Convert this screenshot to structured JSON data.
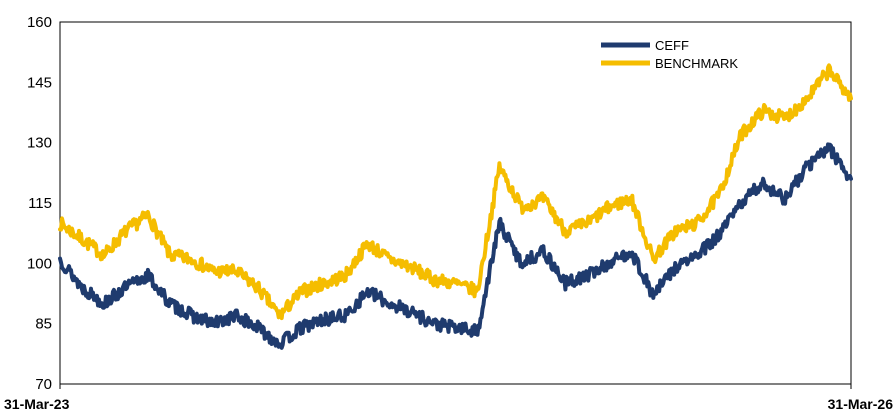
{
  "chart_data": {
    "type": "line",
    "title": "",
    "xlabel": "",
    "ylabel": "",
    "x_start_label": "31-Mar-23",
    "x_end_label": "31-Mar-26",
    "ylim": [
      70,
      160
    ],
    "yticks": [
      70,
      85,
      100,
      115,
      130,
      145,
      160
    ],
    "ytick_labels": [
      "70",
      "85",
      "100",
      "115",
      "130",
      "145",
      "160"
    ],
    "grid": false,
    "legend_position": "top-right",
    "x_period_labels": [
      "31-Mar-23",
      "",
      "",
      "",
      "",
      "",
      "",
      "",
      "",
      "",
      "",
      "",
      "",
      "",
      "",
      "",
      "",
      "",
      "",
      "",
      "",
      "",
      "",
      "",
      "",
      "",
      "",
      "",
      "",
      "",
      "",
      "",
      "",
      "",
      "",
      "",
      "31-Mar-26"
    ],
    "series": [
      {
        "name": "CEFF",
        "color": "#1f3b6e",
        "values": [
          101,
          94,
          90,
          94,
          97,
          90,
          87,
          85,
          87,
          84,
          80,
          84,
          86,
          87,
          93,
          90,
          88,
          85,
          84,
          83,
          110,
          100,
          103,
          95,
          97,
          100,
          103,
          92,
          99,
          102,
          107,
          115,
          120,
          116,
          124,
          129,
          121
        ]
      },
      {
        "name": "BENCHMARK",
        "color": "#f5bd00",
        "values": [
          110,
          106,
          102,
          108,
          112,
          102,
          101,
          98,
          98,
          94,
          87,
          93,
          95,
          97,
          105,
          101,
          99,
          96,
          95,
          93,
          124,
          114,
          116,
          108,
          110,
          114,
          116,
          101,
          108,
          110,
          117,
          132,
          138,
          136,
          141,
          148,
          141
        ]
      }
    ]
  }
}
